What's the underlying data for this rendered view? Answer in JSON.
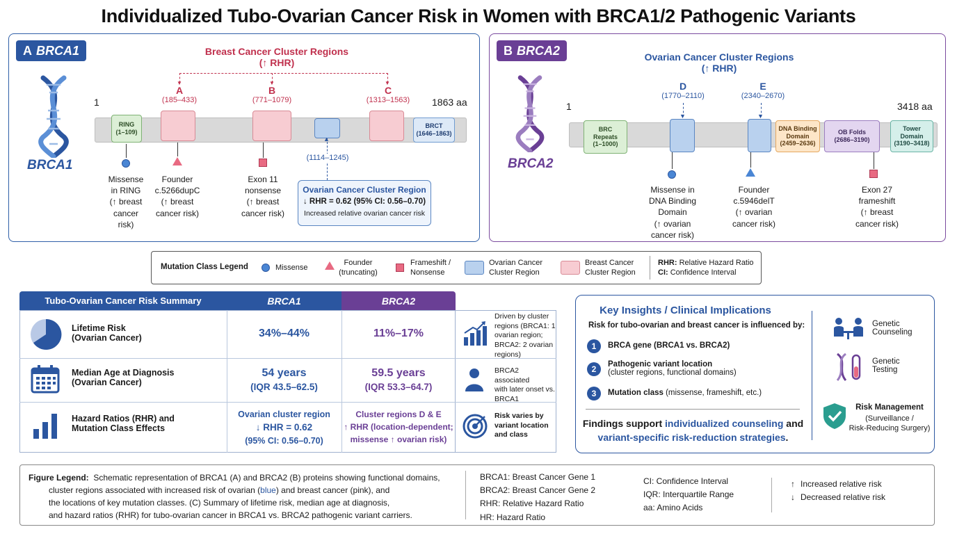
{
  "title": "Individualized Tubo-Ovarian Cancer Risk in Women with BRCA1/2 Pathogenic Variants",
  "colors": {
    "brca1": "#2b56a0",
    "brca2": "#6a3f95",
    "breast": "#c0304d",
    "ovarian": "#2b56a0"
  },
  "panelA": {
    "letter": "A",
    "gene": "BRCA1",
    "side_label": "BRCA1",
    "start": "1",
    "end": "1863 aa",
    "breast_header": "Breast Cancer Cluster Regions",
    "breast_header_sub": "(↑ RHR)",
    "regions": [
      {
        "letter": "A",
        "range": "(185–433)"
      },
      {
        "letter": "B",
        "range": "(771–1079)"
      },
      {
        "letter": "C",
        "range": "(1313–1563)"
      }
    ],
    "domains": [
      {
        "name": "RING",
        "range": "(1–109)"
      },
      {
        "name": "BRCT",
        "range": "(1646–1863)"
      }
    ],
    "ovarian_range": "(1114–1245)",
    "ovarian_box": {
      "title": "Ovarian Cancer Cluster Region",
      "line": "↓ RHR = 0.62 (95% CI: 0.56–0.70)",
      "note": "Increased relative ovarian cancer risk"
    },
    "mutations": [
      {
        "l1": "Missense",
        "l2": "in RING",
        "l3": "(↑ breast",
        "l4": "cancer",
        "l5": "risk)"
      },
      {
        "l1": "Founder",
        "l2": "c.5266dupC",
        "l3": "(↑ breast",
        "l4": "cancer risk)"
      },
      {
        "l1": "Exon 11",
        "l2": "nonsense",
        "l3": "(↑ breast",
        "l4": "cancer risk)"
      }
    ]
  },
  "panelB": {
    "letter": "B",
    "gene": "BRCA2",
    "side_label": "BRCA2",
    "start": "1",
    "end": "3418 aa",
    "ovarian_header": "Ovarian Cancer Cluster Regions",
    "ovarian_header_sub": "(↑ RHR)",
    "regions": [
      {
        "letter": "D",
        "range": "(1770–2110)"
      },
      {
        "letter": "E",
        "range": "(2340–2670)"
      }
    ],
    "domains": [
      {
        "name": "BRC",
        "name2": "Repeats",
        "range": "(1–1000)"
      },
      {
        "name": "DNA Binding",
        "name2": "Domain",
        "range": "(2459–2636)"
      },
      {
        "name": "OB Folds",
        "range": "(2686–3190)"
      },
      {
        "name": "Tower",
        "name2": "Domain",
        "range": "(3190–3418)"
      }
    ],
    "mutations": [
      {
        "l1": "Missense in",
        "l2": "DNA Binding",
        "l3": "Domain",
        "l4": "(↑ ovarian",
        "l5": "cancer risk)"
      },
      {
        "l1": "Founder",
        "l2": "c.5946delT",
        "l3": "(↑ ovarian",
        "l4": "cancer risk)"
      },
      {
        "l1": "Exon 27",
        "l2": "frameshift",
        "l3": "(↑ breast",
        "l4": "cancer risk)"
      }
    ]
  },
  "legend": {
    "title": "Mutation Class Legend",
    "missense": "Missense",
    "founder": "Founder",
    "founder2": "(truncating)",
    "frameshift": "Frameshift /",
    "frameshift2": "Nonsense",
    "ovarian": "Ovarian Cancer",
    "ovarian2": "Cluster Region",
    "breast": "Breast Cancer",
    "breast2": "Cluster Region",
    "rhr_abbr": "RHR:",
    "rhr": "Relative Hazard Ratio",
    "ci_abbr": "CI:",
    "ci": "Confidence Interval"
  },
  "table": {
    "header": "Tubo-Ovarian Cancer Risk Summary",
    "col1": "BRCA1",
    "col2": "BRCA2",
    "rows": [
      {
        "label1": "Lifetime Risk",
        "label2": "(Ovarian Cancer)",
        "v1": "34%–44%",
        "v2": "11%–17%"
      },
      {
        "label1": "Median Age at Diagnosis",
        "label2": "(Ovarian Cancer)",
        "v1": "54 years",
        "v1b": "(IQR 43.5–62.5)",
        "v2": "59.5 years",
        "v2b": "(IQR 53.3–64.7)"
      },
      {
        "label1": "Hazard Ratios (RHR) and",
        "label2": "Mutation Class Effects",
        "v1": "Ovarian cluster region",
        "v1b": "↓ RHR = 0.62",
        "v1c": "(95% CI: 0.56–0.70)",
        "v2": "Cluster regions D & E",
        "v2b": "↑ RHR (location-dependent;",
        "v2c": "missense ↑ ovarian risk)"
      }
    ],
    "side": [
      {
        "l1": "Driven by cluster",
        "l2": "regions (BRCA1: 1",
        "l3": "ovarian region;",
        "l4": "BRCA2: 2 ovarian",
        "l5": "regions)"
      },
      {
        "l1": "BRCA2 associated",
        "l2": "with later onset vs.",
        "l3": "BRCA1"
      },
      {
        "l1": "Risk varies by",
        "l2": "variant location",
        "l3": "and class"
      }
    ]
  },
  "insights": {
    "title": "Key Insights / Clinical Implications",
    "intro": "Risk for tubo-ovarian and breast cancer is influenced by:",
    "items": [
      {
        "num": "1",
        "text": "BRCA gene (BRCA1 vs. BRCA2)"
      },
      {
        "num": "2",
        "text": "Pathogenic variant location",
        "sub": "(cluster regions, functional domains)"
      },
      {
        "num": "3",
        "text": "Mutation class",
        "sub": "(missense, frameshift, etc.)"
      }
    ],
    "findings_a": "Findings support ",
    "findings_b": "individualized counseling",
    "findings_c": " and",
    "findings_d": "variant-specific risk-reduction strategies",
    "findings_e": ".",
    "actions": [
      {
        "l1": "Genetic",
        "l2": "Counseling"
      },
      {
        "l1": "Genetic",
        "l2": "Testing"
      },
      {
        "l1": "Risk Management",
        "l2": "(Surveillance /",
        "l3": "Risk-Reducing Surgery)"
      }
    ]
  },
  "figlegend": {
    "label": "Figure Legend:",
    "t1": "Schematic representation of BRCA1 (A) and BRCA2 (B) proteins showing functional domains,",
    "t2a": "cluster regions associated with increased risk of ovarian (",
    "t2b": "blue",
    "t2c": ") and breast cancer (pink), and",
    "t3": "the locations of key mutation classes. (C) Summary of lifetime risk, median age at diagnosis,",
    "t4": "and hazard ratios (RHR) for tubo-ovarian cancer in BRCA1 vs. BRCA2 pathogenic variant carriers.",
    "abbr1": [
      "BRCA1: Breast Cancer Gene 1",
      "BRCA2: Breast Cancer Gene 2",
      "RHR: Relative Hazard Ratio",
      "HR: Hazard Ratio"
    ],
    "abbr2": [
      "CI: Confidence Interval",
      "IQR: Interquartile Range",
      "aa: Amino Acids"
    ],
    "up": "Increased relative risk",
    "down": "Decreased relative risk"
  }
}
